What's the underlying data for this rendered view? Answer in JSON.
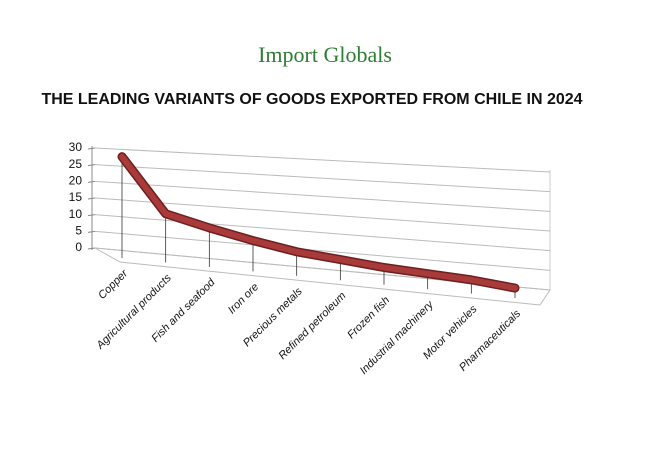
{
  "logo": "Import Globals",
  "chart_data": {
    "type": "line",
    "title": "THE LEADING VARIANTS OF GOODS EXPORTED FROM CHILE IN 2024",
    "categories": [
      "Copper",
      "Agricultural products",
      "Fish and seafood",
      "Iron ore",
      "Precious metals",
      "Refined petroleum",
      "Frozen fish",
      "Industrial machinery",
      "Motor vehicles",
      "Pharmaceuticals"
    ],
    "values": [
      28,
      12,
      9,
      6.5,
      4.5,
      3.5,
      2.5,
      2,
      1.5,
      0.5
    ],
    "color": "#a83a3a",
    "ylim": [
      0,
      30
    ],
    "yticks": [
      0,
      5,
      10,
      15,
      20,
      25,
      30
    ],
    "grid": true
  }
}
